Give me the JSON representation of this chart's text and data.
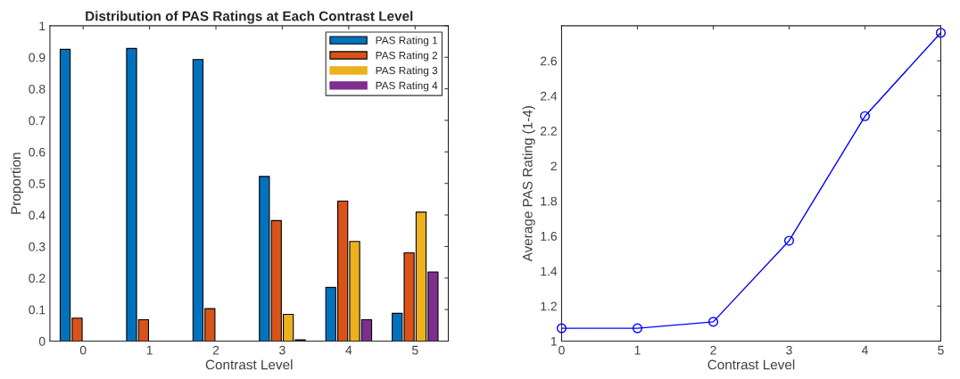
{
  "chart_data": [
    {
      "type": "bar",
      "title": "Distribution of PAS Ratings at Each Contrast Level",
      "xlabel": "Contrast Level",
      "ylabel": "Proportion",
      "categories": [
        "0",
        "1",
        "2",
        "3",
        "4",
        "5"
      ],
      "series": [
        {
          "name": "PAS Rating 1",
          "color": "#0072bd",
          "values": [
            0.925,
            0.928,
            0.893,
            0.522,
            0.17,
            0.088
          ]
        },
        {
          "name": "PAS Rating 2",
          "color": "#d95319",
          "values": [
            0.073,
            0.068,
            0.103,
            0.382,
            0.444,
            0.28
          ]
        },
        {
          "name": "PAS Rating 3",
          "color": "#edb120",
          "values": [
            0,
            0,
            0,
            0.085,
            0.316,
            0.409
          ]
        },
        {
          "name": "PAS Rating 4",
          "color": "#7e2f8e",
          "values": [
            0,
            0,
            0,
            0.004,
            0.068,
            0.219
          ]
        }
      ],
      "ylim": [
        0,
        1
      ],
      "yticks": [
        0,
        0.1,
        0.2,
        0.3,
        0.4,
        0.5,
        0.6,
        0.7,
        0.8,
        0.9,
        1
      ],
      "grid": false,
      "legend": "top right"
    },
    {
      "type": "line",
      "xlabel": "Contrast Level",
      "ylabel": "Average PAS Rating (1-4)",
      "x": [
        0,
        1,
        2,
        3,
        4,
        5
      ],
      "series": [
        {
          "color": "#0000ff",
          "values": [
            1.073,
            1.073,
            1.11,
            1.573,
            2.284,
            2.76
          ]
        }
      ],
      "xlim": [
        0,
        5
      ],
      "xticks": [
        0,
        1,
        2,
        3,
        4,
        5
      ],
      "ylim": [
        1,
        2.8
      ],
      "yticks": [
        1,
        1.2,
        1.4,
        1.6,
        1.8,
        2,
        2.2,
        2.4,
        2.6
      ],
      "grid": false,
      "marker": "circle",
      "line_style": "solid"
    }
  ]
}
